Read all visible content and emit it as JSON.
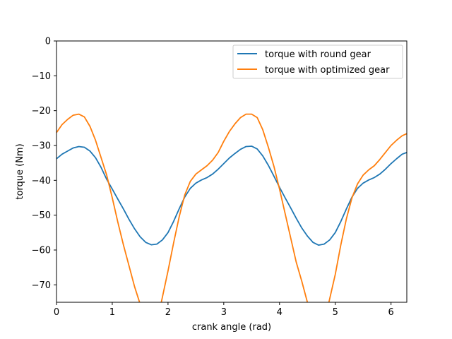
{
  "chart_data": {
    "type": "line",
    "title": "",
    "xlabel": "crank angle (rad)",
    "ylabel": "torque (Nm)",
    "xlim": [
      0,
      6.283
    ],
    "ylim": [
      -75,
      0
    ],
    "xticks": [
      0,
      1,
      2,
      3,
      4,
      5,
      6
    ],
    "yticks": [
      0,
      -10,
      -20,
      -30,
      -40,
      -50,
      -60,
      -70
    ],
    "xtick_labels": [
      "0",
      "1",
      "2",
      "3",
      "4",
      "5",
      "6"
    ],
    "ytick_labels": [
      "0",
      "−10",
      "−20",
      "−30",
      "−40",
      "−50",
      "−60",
      "−70"
    ],
    "grid": false,
    "legend_position": "top-right",
    "series": [
      {
        "name": "torque with round gear",
        "color": "#1f77b4",
        "x": [
          0,
          0.1,
          0.2,
          0.3,
          0.4,
          0.5,
          0.6,
          0.7,
          0.8,
          0.9,
          1.0,
          1.1,
          1.2,
          1.3,
          1.4,
          1.5,
          1.6,
          1.7,
          1.8,
          1.9,
          2.0,
          2.1,
          2.2,
          2.3,
          2.4,
          2.5,
          2.6,
          2.7,
          2.8,
          2.9,
          3.0,
          3.1,
          3.2,
          3.3,
          3.4,
          3.5,
          3.6,
          3.7,
          3.8,
          3.9,
          4.0,
          4.1,
          4.2,
          4.3,
          4.4,
          4.5,
          4.6,
          4.7,
          4.8,
          4.9,
          5.0,
          5.1,
          5.2,
          5.3,
          5.4,
          5.5,
          5.6,
          5.7,
          5.8,
          5.9,
          6.0,
          6.1,
          6.2,
          6.283
        ],
        "y": [
          -33.8,
          -32.5,
          -31.6,
          -30.7,
          -30.3,
          -30.5,
          -31.6,
          -33.5,
          -36.3,
          -39.7,
          -42.5,
          -45.4,
          -48.2,
          -51.2,
          -53.9,
          -56.2,
          -57.8,
          -58.5,
          -58.3,
          -57.1,
          -55.0,
          -51.8,
          -48.2,
          -44.8,
          -42.3,
          -40.8,
          -39.9,
          -39.2,
          -38.2,
          -36.8,
          -35.2,
          -33.6,
          -32.3,
          -31.1,
          -30.3,
          -30.2,
          -31.0,
          -33.0,
          -35.7,
          -38.8,
          -42.0,
          -45.0,
          -47.9,
          -50.9,
          -53.7,
          -56.0,
          -57.8,
          -58.6,
          -58.3,
          -57.1,
          -55.0,
          -51.8,
          -48.2,
          -44.8,
          -42.3,
          -40.8,
          -39.9,
          -39.2,
          -38.2,
          -36.8,
          -35.2,
          -33.8,
          -32.5,
          -32.0
        ]
      },
      {
        "name": "torque with optimized gear",
        "color": "#ff7f0e",
        "x": [
          0,
          0.1,
          0.2,
          0.3,
          0.4,
          0.5,
          0.6,
          0.7,
          0.8,
          0.9,
          1.0,
          1.1,
          1.2,
          1.3,
          1.4,
          1.5,
          1.6,
          1.7,
          1.8,
          1.9,
          2.0,
          2.1,
          2.2,
          2.3,
          2.4,
          2.5,
          2.6,
          2.7,
          2.8,
          2.9,
          3.0,
          3.1,
          3.2,
          3.3,
          3.4,
          3.5,
          3.6,
          3.7,
          3.8,
          3.9,
          4.0,
          4.1,
          4.2,
          4.3,
          4.4,
          4.5,
          4.6,
          4.7,
          4.8,
          4.9,
          5.0,
          5.1,
          5.2,
          5.3,
          5.4,
          5.5,
          5.6,
          5.7,
          5.8,
          5.9,
          6.0,
          6.1,
          6.2,
          6.283
        ],
        "y": [
          -26.3,
          -24.0,
          -22.5,
          -21.3,
          -21.0,
          -21.8,
          -24.5,
          -28.5,
          -33.5,
          -38.5,
          -45.0,
          -52.0,
          -58.5,
          -64.5,
          -70.5,
          -75.5,
          -80.0,
          -82.5,
          -81.0,
          -73.5,
          -66.0,
          -58.0,
          -50.5,
          -44.2,
          -40.3,
          -38.2,
          -37.0,
          -35.8,
          -34.2,
          -32.0,
          -28.8,
          -26.0,
          -23.8,
          -22.0,
          -21.0,
          -21.0,
          -22.0,
          -25.5,
          -30.5,
          -36.0,
          -42.5,
          -49.5,
          -56.5,
          -63.5,
          -69.0,
          -75.0,
          -80.0,
          -82.5,
          -81.0,
          -74.0,
          -67.0,
          -58.5,
          -51.0,
          -45.0,
          -41.0,
          -38.5,
          -37.0,
          -35.8,
          -34.0,
          -32.0,
          -30.0,
          -28.5,
          -27.2,
          -26.6
        ]
      }
    ]
  }
}
